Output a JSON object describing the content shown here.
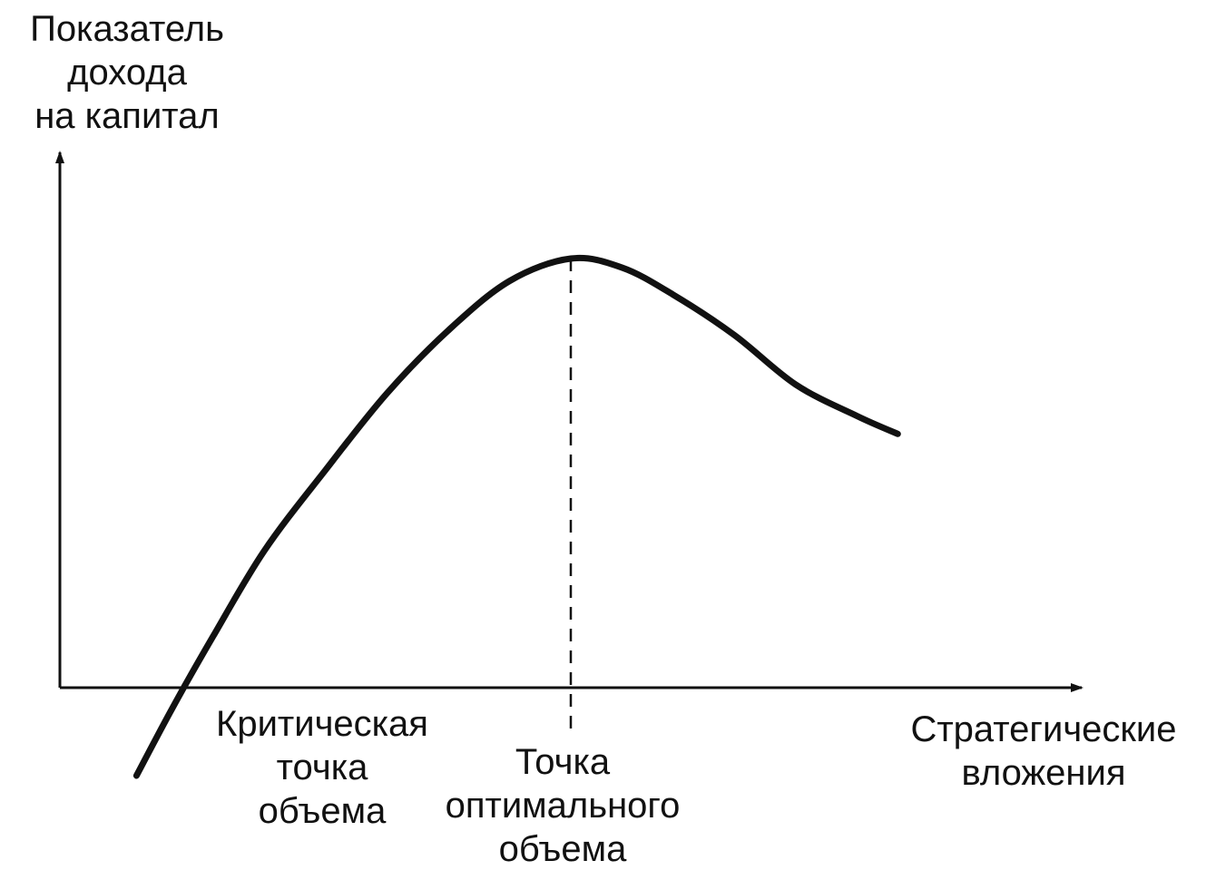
{
  "chart_data": {
    "type": "line",
    "title": "",
    "ylabel": [
      "Показатель",
      "дохода",
      "на капитал"
    ],
    "xlabel": [
      "Стратегические",
      "вложения"
    ],
    "xlim": [
      0,
      100
    ],
    "ylim": [
      -15,
      100
    ],
    "grid": false,
    "series": [
      {
        "x": [
          7.5,
          11,
          15,
          20,
          26,
          32,
          38,
          44,
          50,
          55,
          60,
          66,
          72,
          78,
          82
        ],
        "y": [
          -15,
          0,
          16,
          35,
          53,
          70,
          84,
          95,
          100,
          98,
          92,
          83,
          72,
          65,
          61
        ]
      }
    ],
    "annotations": [
      {
        "id": "critical",
        "x": 11,
        "lines": [
          "Критическая",
          "точка",
          "объема"
        ]
      },
      {
        "id": "optimal",
        "x": 50,
        "lines": [
          "Точка",
          "оптимального",
          "объема"
        ]
      }
    ],
    "style": {
      "line_color": "#111111",
      "axis_color": "#111111",
      "background": "#ffffff"
    }
  }
}
